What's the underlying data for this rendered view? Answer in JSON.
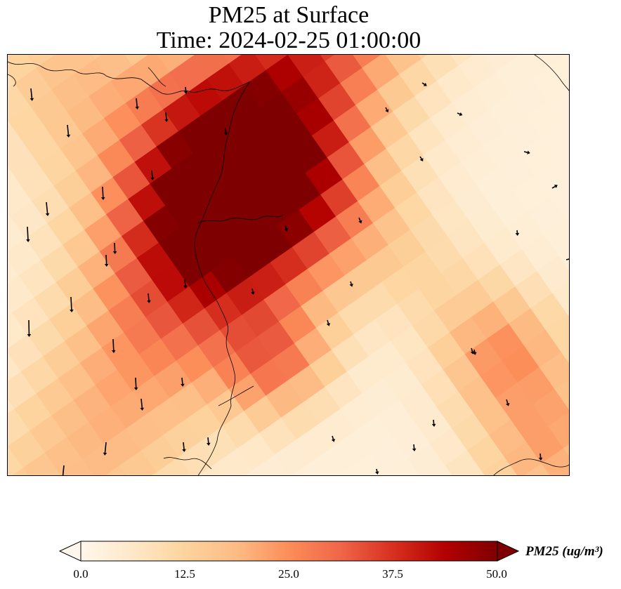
{
  "title": {
    "line1": "PM25 at Surface",
    "line2": "Time: 2024-02-25 01:00:00"
  },
  "colorbar": {
    "label": "PM25 (ug/m³)",
    "min": 0.0,
    "max": 50.0,
    "ticks": [
      "0.0",
      "12.5",
      "25.0",
      "37.5",
      "50.0"
    ],
    "extend": "both",
    "colormap": "OrRd",
    "colors": [
      "#fff7ec",
      "#fee8c8",
      "#fdd49e",
      "#fdbb84",
      "#fc8d59",
      "#ef6548",
      "#d7301f",
      "#b30000",
      "#7f0000"
    ]
  },
  "map": {
    "field": "PM25",
    "features": [
      "coastlines",
      "wind-vectors"
    ],
    "plume_peak_value": 50.0,
    "background_value": 3.0
  }
}
